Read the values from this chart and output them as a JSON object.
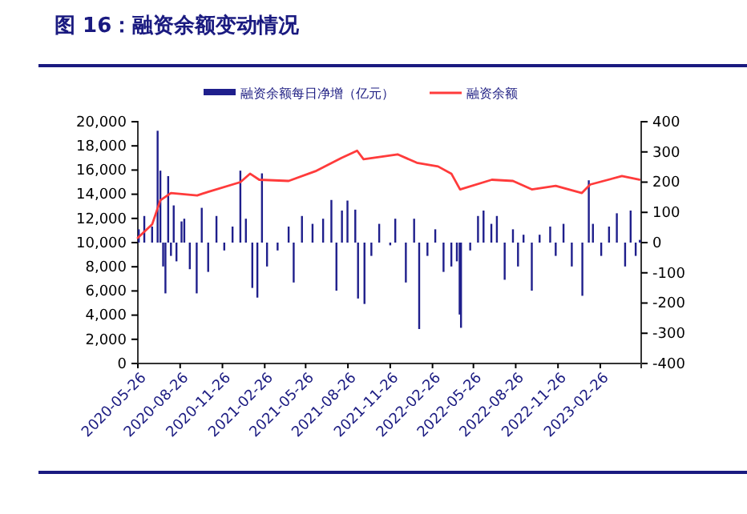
{
  "chart_data": {
    "type": "bar",
    "title": "图 16：融资余额变动情况",
    "xlim": [
      "2020-05-26",
      "2023-05-26"
    ],
    "xticks": [
      "2020-05-26",
      "2020-08-26",
      "2020-11-26",
      "2021-02-26",
      "2021-05-26",
      "2021-08-26",
      "2021-11-26",
      "2022-02-26",
      "2022-05-26",
      "2022-08-26",
      "2022-11-26",
      "2023-02-26"
    ],
    "ylim": [
      0,
      20000
    ],
    "yticks": [
      {
        "value": 0,
        "label": "0"
      },
      {
        "value": 2000,
        "label": "2,000"
      },
      {
        "value": 4000,
        "label": "4,000"
      },
      {
        "value": 6000,
        "label": "6,000"
      },
      {
        "value": 8000,
        "label": "8,000"
      },
      {
        "value": 10000,
        "label": "10,000"
      },
      {
        "value": 12000,
        "label": "12,000"
      },
      {
        "value": 14000,
        "label": "14,000"
      },
      {
        "value": 16000,
        "label": "16,000"
      },
      {
        "value": 18000,
        "label": "18,000"
      },
      {
        "value": 20000,
        "label": "20,000"
      }
    ],
    "y2lim": [
      -400,
      400
    ],
    "y2ticks": [
      -400,
      -300,
      -200,
      -100,
      0,
      100,
      200,
      300,
      400
    ],
    "legend": "top",
    "grid": false,
    "series": [
      {
        "name": "融资余额每日净增（亿元）",
        "axis": "y2",
        "color": "#1f1f8c",
        "x": [
          "2020-05-28",
          "2020-06-09",
          "2020-06-26",
          "2020-07-08",
          "2020-07-14",
          "2020-07-20",
          "2020-07-25",
          "2020-07-31",
          "2020-08-06",
          "2020-08-12",
          "2020-08-18",
          "2020-08-29",
          "2020-09-04",
          "2020-09-16",
          "2020-10-01",
          "2020-10-12",
          "2020-10-26",
          "2020-11-13",
          "2020-11-30",
          "2020-12-18",
          "2021-01-04",
          "2021-01-16",
          "2021-01-30",
          "2021-02-10",
          "2021-02-20",
          "2021-03-03",
          "2021-03-26",
          "2021-04-19",
          "2021-04-30",
          "2021-05-18",
          "2021-06-10",
          "2021-07-03",
          "2021-07-21",
          "2021-08-01",
          "2021-08-13",
          "2021-08-25",
          "2021-09-11",
          "2021-09-17",
          "2021-10-01",
          "2021-10-16",
          "2021-11-02",
          "2021-11-26",
          "2021-12-07",
          "2021-12-30",
          "2022-01-17",
          "2022-01-28",
          "2022-02-15",
          "2022-03-04",
          "2022-03-22",
          "2022-04-08",
          "2022-04-20",
          "2022-04-26",
          "2022-04-29",
          "2022-05-19",
          "2022-06-05",
          "2022-06-17",
          "2022-07-04",
          "2022-07-16",
          "2022-08-02",
          "2022-08-20",
          "2022-08-31",
          "2022-09-12",
          "2022-09-30",
          "2022-10-17",
          "2022-11-09",
          "2022-11-21",
          "2022-12-08",
          "2022-12-26",
          "2023-01-18",
          "2023-02-01",
          "2023-02-10",
          "2023-02-28",
          "2023-03-17",
          "2023-04-03",
          "2023-04-21",
          "2023-05-03",
          "2023-05-14",
          "2023-05-23"
        ],
        "values": [
          44,
          88,
          53,
          370,
          238,
          -79,
          -168,
          220,
          -44,
          123,
          -62,
          70,
          79,
          -88,
          -168,
          115,
          -97,
          88,
          -26,
          53,
          238,
          79,
          -150,
          -182,
          229,
          -79,
          -26,
          53,
          -132,
          88,
          62,
          79,
          141,
          -159,
          106,
          139,
          109,
          -185,
          -203,
          -44,
          62,
          -9,
          79,
          -132,
          79,
          -286,
          -44,
          44,
          -97,
          -79,
          -62,
          -238,
          -282,
          -26,
          88,
          106,
          62,
          88,
          -123,
          44,
          -79,
          26,
          -159,
          26,
          53,
          -44,
          62,
          -79,
          -176,
          206,
          62,
          -44,
          53,
          97,
          -79,
          106,
          -44,
          9
        ]
      },
      {
        "name": "融资余额",
        "type": "line",
        "color": "#ff3b3b",
        "x": [
          "2020-05-26",
          "2020-06-26",
          "2020-07-14",
          "2020-08-06",
          "2020-10-02",
          "2020-10-26",
          "2021-01-04",
          "2021-01-25",
          "2021-02-14",
          "2021-04-19",
          "2021-06-16",
          "2021-08-12",
          "2021-09-15",
          "2021-09-29",
          "2021-12-12",
          "2022-01-23",
          "2022-03-10",
          "2022-04-08",
          "2022-04-27",
          "2022-07-05",
          "2022-08-20",
          "2022-09-30",
          "2022-11-21",
          "2023-01-17",
          "2023-02-04",
          "2023-04-14",
          "2023-05-22"
        ],
        "values": [
          10400,
          11500,
          13500,
          14100,
          13900,
          14200,
          15000,
          15700,
          15200,
          15100,
          15900,
          17000,
          17600,
          16900,
          17300,
          16600,
          16300,
          15700,
          14400,
          15200,
          15100,
          14400,
          14700,
          14100,
          14800,
          15500,
          15200
        ]
      }
    ]
  }
}
